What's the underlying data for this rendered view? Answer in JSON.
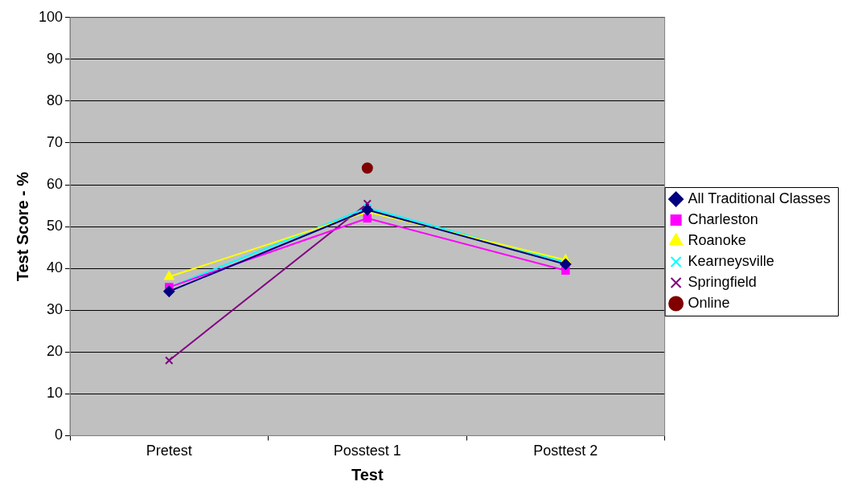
{
  "chart_data": {
    "type": "line",
    "xlabel": "Test",
    "ylabel": "Test Score - %",
    "categories": [
      "Pretest",
      "Posstest 1",
      "Posttest 2"
    ],
    "ylim": [
      0,
      100
    ],
    "yticks": [
      0,
      10,
      20,
      30,
      40,
      50,
      60,
      70,
      80,
      90,
      100
    ],
    "grid": "y",
    "legend": "right",
    "line_style": "solid",
    "series": [
      {
        "name": "All Traditional Classes",
        "color": "#000080",
        "marker": "diamond",
        "values": [
          34.5,
          54,
          41
        ]
      },
      {
        "name": "Charleston",
        "color": "#ff00ff",
        "marker": "square",
        "values": [
          35.5,
          52,
          39.5
        ]
      },
      {
        "name": "Roanoke",
        "color": "#ffff00",
        "marker": "triangle",
        "values": [
          38,
          53.5,
          42
        ]
      },
      {
        "name": "Kearneysville",
        "color": "#00ffff",
        "marker": "cross",
        "values": [
          35.5,
          54.5,
          41.5
        ]
      },
      {
        "name": "Springfield",
        "color": "#800080",
        "marker": "cross",
        "values": [
          18,
          55.5,
          null
        ]
      },
      {
        "name": "Online",
        "color": "#800000",
        "marker": "circle",
        "values": [
          null,
          64,
          null
        ]
      }
    ]
  }
}
